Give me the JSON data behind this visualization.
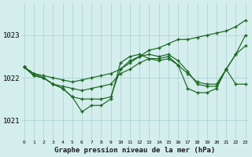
{
  "title": "Graphe pression niveau de la mer (hPa)",
  "background_color": "#d4eeed",
  "grid_color": "#a8cece",
  "line_color": "#1a6620",
  "marker_color": "#1a6620",
  "xlim_min": -0.3,
  "xlim_max": 23.3,
  "ylim_min": 1020.55,
  "ylim_max": 1023.75,
  "yticks": [
    1021,
    1022,
    1023
  ],
  "series": [
    [
      1022.25,
      1022.1,
      1022.0,
      1021.85,
      1021.8,
      1021.75,
      1021.7,
      1021.75,
      1021.8,
      1021.85,
      1022.1,
      1022.2,
      1022.35,
      1022.45,
      1022.4,
      1022.45,
      1022.3,
      1022.1,
      1021.9,
      1021.85,
      1021.85,
      1022.2,
      1021.85,
      1021.85
    ],
    [
      1022.25,
      1022.05,
      1022.0,
      1021.85,
      1021.75,
      1021.55,
      1021.2,
      1021.35,
      1021.35,
      1021.5,
      1022.35,
      1022.5,
      1022.55,
      1022.45,
      1022.45,
      1022.5,
      1022.3,
      1021.75,
      1021.65,
      1021.65,
      1021.75,
      1022.2,
      1022.55,
      1022.75
    ],
    [
      1022.25,
      1022.05,
      1022.0,
      1021.85,
      1021.75,
      1021.55,
      1021.5,
      1021.5,
      1021.5,
      1021.55,
      1022.2,
      1022.4,
      1022.5,
      1022.55,
      1022.5,
      1022.55,
      1022.4,
      1022.15,
      1021.85,
      1021.8,
      1021.8,
      1022.2,
      1022.55,
      1023.0
    ],
    [
      1022.25,
      1022.1,
      1022.05,
      1022.0,
      1021.95,
      1021.9,
      1021.95,
      1022.0,
      1022.05,
      1022.1,
      1022.2,
      1022.35,
      1022.5,
      1022.65,
      1022.7,
      1022.8,
      1022.9,
      1022.9,
      1022.95,
      1023.0,
      1023.05,
      1023.1,
      1023.2,
      1023.35
    ]
  ],
  "xlabel_fontsize": 6.5,
  "ytick_fontsize": 6.5,
  "xtick_fontsize": 4.5
}
